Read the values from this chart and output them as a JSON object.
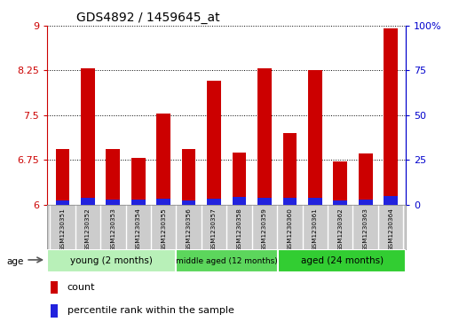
{
  "title": "GDS4892 / 1459645_at",
  "samples": [
    "GSM1230351",
    "GSM1230352",
    "GSM1230353",
    "GSM1230354",
    "GSM1230355",
    "GSM1230356",
    "GSM1230357",
    "GSM1230358",
    "GSM1230359",
    "GSM1230360",
    "GSM1230361",
    "GSM1230362",
    "GSM1230363",
    "GSM1230364"
  ],
  "count_values": [
    6.93,
    8.28,
    6.93,
    6.78,
    7.52,
    6.93,
    8.07,
    6.87,
    8.28,
    7.2,
    8.25,
    6.72,
    6.85,
    8.95
  ],
  "percentile_values": [
    2.0,
    3.5,
    2.5,
    2.5,
    3.0,
    2.0,
    3.0,
    4.0,
    3.5,
    3.5,
    3.5,
    2.0,
    2.5,
    4.5
  ],
  "ymin": 6.0,
  "ymax": 9.0,
  "yticks": [
    6,
    6.75,
    7.5,
    8.25,
    9
  ],
  "right_yticks": [
    0,
    25,
    50,
    75,
    100
  ],
  "groups": [
    {
      "label": "young (2 months)",
      "start": 0,
      "end": 5
    },
    {
      "label": "middle aged (12 months)",
      "start": 5,
      "end": 9
    },
    {
      "label": "aged (24 months)",
      "start": 9,
      "end": 14
    }
  ],
  "group_colors": [
    "#B8F0B8",
    "#5CD65C",
    "#32CD32"
  ],
  "bar_color_red": "#CC0000",
  "bar_color_blue": "#2222DD",
  "bar_width": 0.55,
  "background_color": "#FFFFFF",
  "left_axis_color": "#CC0000",
  "right_axis_color": "#0000CC",
  "tick_label_area_color": "#CCCCCC",
  "tick_label_border_color": "#999999",
  "legend_count_label": "count",
  "legend_percentile_label": "percentile rank within the sample"
}
